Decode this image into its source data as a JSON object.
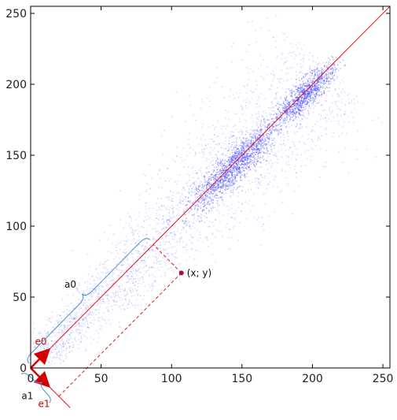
{
  "chart_data": {
    "type": "scatter",
    "title": "",
    "xlabel": "",
    "ylabel": "",
    "xlim": [
      0,
      255
    ],
    "ylim": [
      0,
      255
    ],
    "grid": false,
    "x_ticks": [
      0,
      50,
      100,
      150,
      200,
      250
    ],
    "y_ticks": [
      0,
      50,
      100,
      150,
      200,
      250
    ],
    "x_tick_labels": [
      "0",
      "50",
      "100",
      "150",
      "200",
      "250"
    ],
    "y_tick_labels": [
      "0",
      "50",
      "100",
      "150",
      "200",
      "250"
    ],
    "point_cloud": {
      "description_center_line": "y = x",
      "dense_clusters": [
        {
          "x": 145,
          "y": 143
        },
        {
          "x": 195,
          "y": 193
        }
      ],
      "extent": [
        [
          5,
          5
        ],
        [
          212,
          212
        ]
      ]
    },
    "reference_line": {
      "from": [
        0,
        0
      ],
      "to": [
        255,
        255
      ]
    },
    "axis_line_e1": {
      "from": [
        0,
        0
      ],
      "to": [
        28,
        -28
      ]
    },
    "highlight_point": {
      "x": 107,
      "y": 67,
      "label": "(x; y)"
    },
    "projections": {
      "on_e0": [
        87,
        87
      ],
      "on_e1": [
        20,
        -20
      ]
    },
    "vectors": [
      {
        "name": "e0",
        "label": "e0",
        "from": [
          0,
          0
        ],
        "to": [
          12,
          12
        ]
      },
      {
        "name": "e1",
        "label": "e1",
        "from": [
          0,
          0
        ],
        "to": [
          12,
          -12
        ]
      }
    ],
    "braces": [
      {
        "name": "a0",
        "label": "a0",
        "along": "e0",
        "span": [
          0,
          87
        ]
      },
      {
        "name": "a1",
        "label": "a1",
        "along": "e1",
        "span": [
          0,
          20
        ]
      }
    ],
    "colors": {
      "points": "#3a3cff",
      "reference_line": "#e8141b",
      "axes": "#000000",
      "brace": "#4f8fd0",
      "highlight": "#a01040",
      "annotation_text": "#d40000"
    }
  }
}
